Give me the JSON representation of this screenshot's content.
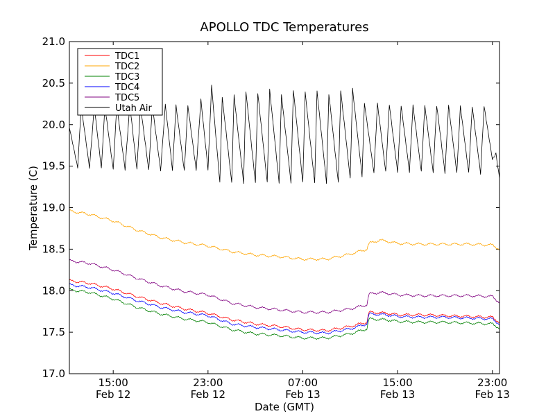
{
  "chart_data": {
    "type": "line",
    "title": "APOLLO TDC Temperatures",
    "xlabel": "Date (GMT)",
    "ylabel": "Temperature (C)",
    "ylim": [
      17.0,
      21.0
    ],
    "xlim_hours": [
      11.3,
      47.6
    ],
    "x_unit": "hours since Feb 12 00:00 GMT",
    "y_ticks": [
      {
        "value": 17.0,
        "label": "17.0"
      },
      {
        "value": 17.5,
        "label": "17.5"
      },
      {
        "value": 18.0,
        "label": "18.0"
      },
      {
        "value": 18.5,
        "label": "18.5"
      },
      {
        "value": 19.0,
        "label": "19.0"
      },
      {
        "value": 19.5,
        "label": "19.5"
      },
      {
        "value": 20.0,
        "label": "20.0"
      },
      {
        "value": 20.5,
        "label": "20.5"
      },
      {
        "value": 21.0,
        "label": "21.0"
      }
    ],
    "x_ticks": [
      {
        "value": 15,
        "time": "15:00",
        "date": "Feb 12"
      },
      {
        "value": 23,
        "time": "23:00",
        "date": "Feb 12"
      },
      {
        "value": 31,
        "time": "07:00",
        "date": "Feb 13"
      },
      {
        "value": 39,
        "time": "15:00",
        "date": "Feb 13"
      },
      {
        "value": 47,
        "time": "23:00",
        "date": "Feb 13"
      }
    ],
    "legend_position": "top-left",
    "series": [
      {
        "name": "TDC1",
        "color": "#ff0000",
        "x": [
          11.3,
          13,
          15,
          17,
          19,
          21,
          23,
          25,
          27,
          29,
          31,
          33,
          35,
          36.4,
          36.6,
          38,
          39,
          41,
          43,
          45,
          47,
          47.6
        ],
        "values": [
          18.12,
          18.09,
          18.02,
          17.93,
          17.85,
          17.78,
          17.73,
          17.65,
          17.6,
          17.57,
          17.53,
          17.52,
          17.57,
          17.62,
          17.74,
          17.73,
          17.71,
          17.71,
          17.7,
          17.69,
          17.68,
          17.62
        ]
      },
      {
        "name": "TDC2",
        "color": "#ffa500",
        "x": [
          11.3,
          13,
          15,
          17,
          19,
          21,
          23,
          25,
          27,
          29,
          31,
          33,
          35,
          36.4,
          36.6,
          37.5,
          39,
          41,
          43,
          45,
          47,
          47.6
        ],
        "values": [
          18.96,
          18.92,
          18.84,
          18.73,
          18.64,
          18.58,
          18.54,
          18.47,
          18.43,
          18.41,
          18.38,
          18.38,
          18.44,
          18.5,
          18.57,
          18.61,
          18.57,
          18.56,
          18.56,
          18.56,
          18.55,
          18.5
        ]
      },
      {
        "name": "TDC3",
        "color": "#008000",
        "x": [
          11.3,
          13,
          15,
          17,
          19,
          21,
          23,
          25,
          27,
          29,
          31,
          33,
          35,
          36.4,
          36.6,
          38,
          39,
          41,
          43,
          45,
          47,
          47.6
        ],
        "values": [
          18.01,
          17.98,
          17.9,
          17.8,
          17.72,
          17.66,
          17.62,
          17.53,
          17.48,
          17.46,
          17.43,
          17.43,
          17.48,
          17.54,
          17.66,
          17.65,
          17.63,
          17.62,
          17.62,
          17.61,
          17.6,
          17.55
        ]
      },
      {
        "name": "TDC4",
        "color": "#0000ff",
        "x": [
          11.3,
          13,
          15,
          17,
          19,
          21,
          23,
          25,
          27,
          29,
          31,
          33,
          35,
          36.4,
          36.6,
          38,
          39,
          41,
          43,
          45,
          47,
          47.6
        ],
        "values": [
          18.07,
          18.04,
          17.97,
          17.88,
          17.8,
          17.74,
          17.7,
          17.6,
          17.56,
          17.53,
          17.5,
          17.49,
          17.54,
          17.6,
          17.72,
          17.71,
          17.69,
          17.68,
          17.68,
          17.67,
          17.66,
          17.6
        ]
      },
      {
        "name": "TDC5",
        "color": "#800080",
        "x": [
          11.3,
          13,
          15,
          17,
          19,
          21,
          23,
          25,
          27,
          29,
          31,
          33,
          35,
          36.4,
          36.6,
          37.5,
          39,
          41,
          43,
          45,
          47,
          47.6
        ],
        "values": [
          18.36,
          18.33,
          18.25,
          18.15,
          18.06,
          17.99,
          17.95,
          17.85,
          17.8,
          17.77,
          17.74,
          17.74,
          17.78,
          17.83,
          17.96,
          17.98,
          17.95,
          17.94,
          17.94,
          17.94,
          17.93,
          17.86
        ]
      },
      {
        "name": "Utah Air",
        "color": "#000000",
        "x": [
          11.3,
          12.0,
          12.3,
          13.0,
          13.4,
          14.0,
          14.3,
          15.0,
          15.3,
          16.0,
          16.4,
          17.0,
          17.3,
          18.0,
          18.3,
          19.0,
          19.4,
          20.0,
          20.3,
          21.0,
          21.3,
          22.0,
          22.4,
          23.0,
          23.3,
          24.0,
          24.2,
          25.0,
          25.2,
          26.0,
          26.2,
          27.0,
          27.2,
          28.0,
          28.2,
          29.0,
          29.2,
          30.0,
          30.2,
          31.0,
          31.2,
          32.0,
          32.2,
          33.0,
          33.2,
          34.0,
          34.2,
          35.0,
          35.2,
          36.0,
          36.2,
          37.0,
          37.3,
          38.0,
          38.3,
          39.0,
          39.3,
          40.0,
          40.3,
          41.0,
          41.3,
          42.0,
          42.3,
          43.0,
          43.3,
          44.0,
          44.3,
          45.0,
          45.3,
          46.0,
          46.3,
          47.0,
          47.3,
          47.6
        ],
        "values": [
          19.97,
          19.48,
          20.22,
          19.48,
          20.22,
          19.47,
          20.22,
          19.46,
          20.23,
          19.46,
          20.24,
          19.46,
          20.22,
          19.45,
          20.23,
          19.45,
          20.24,
          19.45,
          20.23,
          19.44,
          20.23,
          19.45,
          20.3,
          19.46,
          20.47,
          19.3,
          20.33,
          19.3,
          20.35,
          19.3,
          20.4,
          19.3,
          20.38,
          19.3,
          20.42,
          19.3,
          20.36,
          19.3,
          20.42,
          19.3,
          20.39,
          19.3,
          20.4,
          19.3,
          20.37,
          19.3,
          20.41,
          19.35,
          20.43,
          19.38,
          20.26,
          19.42,
          20.25,
          19.43,
          20.24,
          19.43,
          20.23,
          19.43,
          20.23,
          19.43,
          20.23,
          19.42,
          20.23,
          19.42,
          20.23,
          19.42,
          20.22,
          19.42,
          20.22,
          19.41,
          20.22,
          19.58,
          19.65,
          19.35
        ]
      }
    ]
  }
}
